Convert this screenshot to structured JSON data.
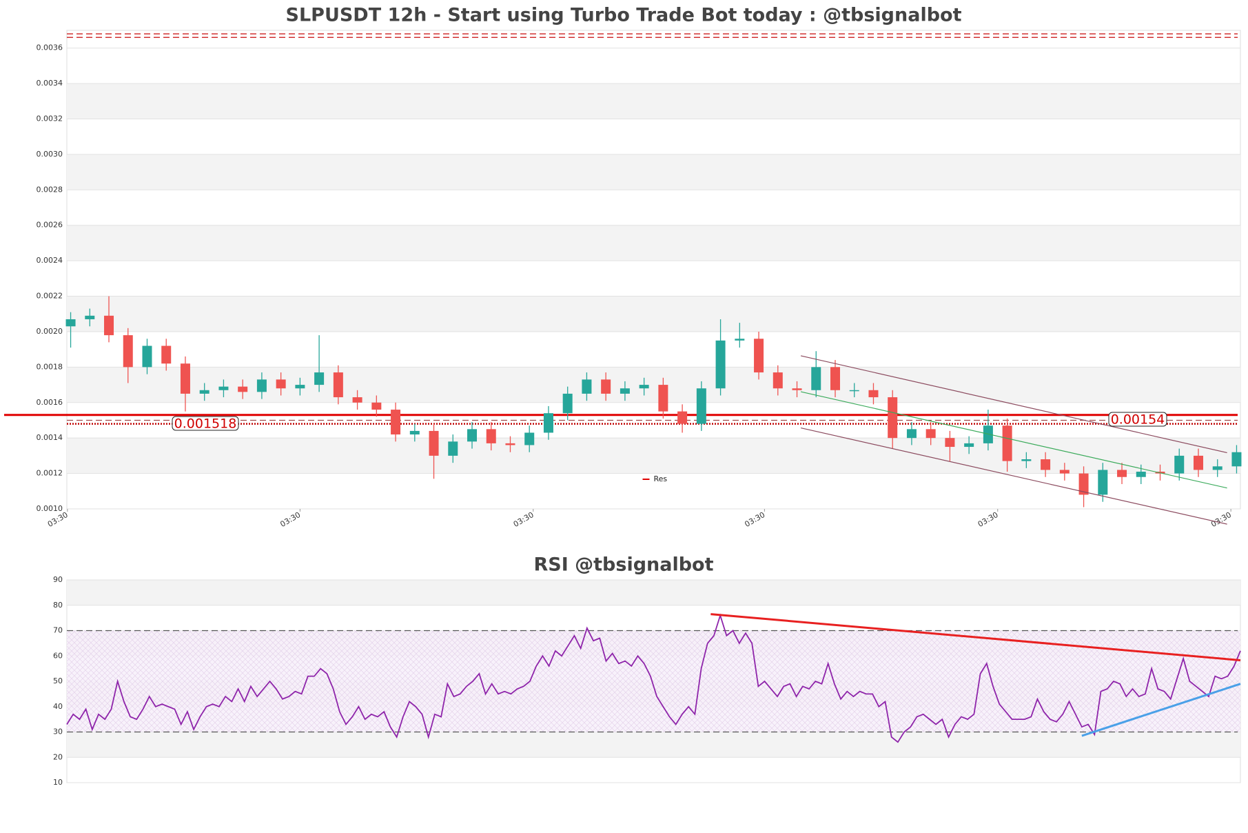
{
  "chart_data": [
    {
      "type": "candlestick",
      "title": "SLPUSDT 12h - Start using Turbo Trade Bot today : @tbsignalbot",
      "open": [
        0.00203,
        0.00207,
        0.00209,
        0.00198,
        0.0018,
        0.00192,
        0.00182,
        0.00165,
        0.00167,
        0.00169,
        0.00166,
        0.00173,
        0.00168,
        0.0017,
        0.00177,
        0.00163,
        0.0016,
        0.00156,
        0.00142,
        0.00144,
        0.0013,
        0.00138,
        0.00145,
        0.00137,
        0.00136,
        0.00143,
        0.00154,
        0.00165,
        0.00173,
        0.00165,
        0.00168,
        0.0017,
        0.00155,
        0.00148,
        0.00168,
        0.00195,
        0.00196,
        0.00177,
        0.00168,
        0.00167,
        0.0018,
        0.00167,
        0.00167,
        0.00163,
        0.0014,
        0.00145,
        0.0014,
        0.00135,
        0.00137,
        0.00147,
        0.00127,
        0.00128,
        0.00122,
        0.0012,
        0.00108,
        0.00122,
        0.00118,
        0.00121,
        0.0012,
        0.0013,
        0.00122,
        0.00124
      ],
      "high": [
        0.00211,
        0.00213,
        0.0022,
        0.00202,
        0.00196,
        0.00196,
        0.00186,
        0.00171,
        0.00173,
        0.00173,
        0.00177,
        0.00177,
        0.00174,
        0.00198,
        0.00181,
        0.00167,
        0.00164,
        0.0016,
        0.00148,
        0.00148,
        0.00142,
        0.00149,
        0.00149,
        0.00141,
        0.00147,
        0.00158,
        0.00169,
        0.00177,
        0.00177,
        0.00172,
        0.00174,
        0.00174,
        0.00159,
        0.00172,
        0.00207,
        0.00205,
        0.002,
        0.00181,
        0.00172,
        0.00189,
        0.00184,
        0.00171,
        0.00171,
        0.00167,
        0.00149,
        0.00149,
        0.00144,
        0.00141,
        0.00156,
        0.00151,
        0.00132,
        0.00132,
        0.00126,
        0.00124,
        0.00126,
        0.00126,
        0.00125,
        0.00125,
        0.00134,
        0.00134,
        0.00128,
        0.00136
      ],
      "low": [
        0.00191,
        0.00203,
        0.00194,
        0.00171,
        0.00176,
        0.00178,
        0.00155,
        0.00161,
        0.00163,
        0.00162,
        0.00162,
        0.00164,
        0.00164,
        0.00166,
        0.00159,
        0.00156,
        0.00152,
        0.00138,
        0.00138,
        0.00117,
        0.00126,
        0.00134,
        0.00133,
        0.00132,
        0.00132,
        0.00139,
        0.0015,
        0.00161,
        0.00161,
        0.00161,
        0.00164,
        0.00151,
        0.00143,
        0.00144,
        0.00164,
        0.00191,
        0.00173,
        0.00164,
        0.00163,
        0.00163,
        0.00163,
        0.00163,
        0.00159,
        0.00134,
        0.00136,
        0.00136,
        0.00127,
        0.00131,
        0.00133,
        0.00121,
        0.00123,
        0.00118,
        0.00116,
        0.00101,
        0.00104,
        0.00114,
        0.00114,
        0.00116,
        0.00116,
        0.00118,
        0.00118,
        0.0012
      ],
      "close": [
        0.00207,
        0.00209,
        0.00198,
        0.0018,
        0.00192,
        0.00182,
        0.00165,
        0.00167,
        0.00169,
        0.00166,
        0.00173,
        0.00168,
        0.0017,
        0.00177,
        0.00163,
        0.0016,
        0.00156,
        0.00142,
        0.00144,
        0.0013,
        0.00138,
        0.00145,
        0.00137,
        0.00136,
        0.00143,
        0.00154,
        0.00165,
        0.00173,
        0.00165,
        0.00168,
        0.0017,
        0.00155,
        0.00148,
        0.00168,
        0.00195,
        0.00196,
        0.00177,
        0.00168,
        0.00167,
        0.0018,
        0.00167,
        0.00167,
        0.00163,
        0.0014,
        0.00145,
        0.0014,
        0.00135,
        0.00137,
        0.00147,
        0.00127,
        0.00128,
        0.00122,
        0.0012,
        0.00108,
        0.00122,
        0.00118,
        0.00121,
        0.0012,
        0.0013,
        0.00122,
        0.00124,
        0.00132
      ],
      "up_color": "#26a69a",
      "down_color": "#ef5350",
      "xlim": [
        -0.2,
        61.2
      ],
      "xticks": [
        {
          "value": -0.17,
          "label": "03:30"
        },
        {
          "value": 12.0,
          "label": "03:30"
        },
        {
          "value": 24.2,
          "label": "03:30"
        },
        {
          "value": 36.3,
          "label": "03:30"
        },
        {
          "value": 48.5,
          "label": "03:30"
        },
        {
          "value": 60.7,
          "label": "03:30"
        }
      ],
      "ylim": [
        0.001,
        0.0037
      ],
      "yticks": [
        {
          "value": 0.001,
          "label": "0.0010"
        },
        0.0012,
        0.0014,
        0.0016,
        0.0018,
        {
          "value": 0.002,
          "label": "0.0020"
        },
        0.0022,
        0.0024,
        0.0026,
        0.0028,
        {
          "value": 0.003,
          "label": "0.0030"
        },
        0.0032,
        0.0034,
        0.0036
      ],
      "grid": "bands",
      "hlines": [
        {
          "name": "Res",
          "value": 0.00153,
          "color": "#e00000",
          "style": "solid",
          "width": 3
        },
        {
          "value": 0.0015,
          "color": "#a04848",
          "style": "dashed",
          "width": 1.2
        },
        {
          "value": 0.00148,
          "color": "#c00000",
          "style": "dotted",
          "width": 2.5
        },
        {
          "value": 0.00368,
          "color": "#d03030",
          "style": "dashed",
          "width": 1.5
        },
        {
          "value": 0.00366,
          "color": "#d03030",
          "style": "dashed",
          "width": 1.5
        }
      ],
      "price_labels": [
        "0.001518",
        "0.00154"
      ],
      "trend_lines": [
        {
          "color": "#8b4a5e",
          "x": [
            38.2,
            60.5
          ],
          "y": [
            0.001864,
            0.001317
          ]
        },
        {
          "color": "#8b4a5e",
          "x": [
            38.2,
            60.5
          ],
          "y": [
            0.001457,
            0.000914
          ]
        },
        {
          "color": "#3aaa5a",
          "x": [
            38.2,
            60.5
          ],
          "y": [
            0.001661,
            0.001118
          ]
        }
      ],
      "legend": "lower center"
    },
    {
      "type": "line",
      "title": "RSI @tbsignalbot",
      "series": [
        {
          "color": "#8e24aa",
          "values": [
            33,
            37,
            35,
            39,
            31,
            37,
            35,
            39,
            50,
            42,
            36,
            35,
            39,
            44,
            40,
            41,
            40,
            39,
            33,
            38,
            31,
            36,
            40,
            41,
            40,
            44,
            42,
            47,
            42,
            48,
            44,
            47,
            50,
            47,
            43,
            44,
            46,
            45,
            52,
            52,
            55,
            53,
            47,
            38,
            33,
            36,
            40,
            35,
            37,
            36,
            38,
            32,
            28,
            36,
            42,
            40,
            37,
            28,
            37,
            36,
            49,
            44,
            45,
            48,
            50,
            53,
            45,
            49,
            45,
            46,
            45,
            47,
            48,
            50,
            56,
            60,
            56,
            62,
            60,
            64,
            68,
            63,
            71,
            66,
            67,
            58,
            61,
            57,
            58,
            56,
            60,
            57,
            52,
            44,
            40,
            36,
            33,
            37,
            40,
            37,
            55,
            65,
            68,
            76,
            68,
            70,
            65,
            69,
            65,
            48,
            50,
            47,
            44,
            48,
            49,
            44,
            48,
            47,
            50,
            49,
            57,
            49,
            43,
            46,
            44,
            46,
            45,
            45,
            40,
            42,
            28,
            26,
            30,
            32,
            36,
            37,
            35,
            33,
            35,
            28,
            33,
            36,
            35,
            37,
            53,
            57,
            48,
            41,
            38,
            35,
            35,
            35,
            36,
            43,
            38,
            35,
            34,
            37,
            42,
            37,
            32,
            33,
            29,
            46,
            47,
            50,
            49,
            44,
            47,
            44,
            45,
            55,
            47,
            46,
            43,
            51,
            59,
            50,
            48,
            46,
            44,
            52,
            51,
            52,
            56,
            62
          ]
        }
      ],
      "xlim": [
        0,
        185
      ],
      "ylim": [
        10,
        90
      ],
      "yticks": [
        10,
        20,
        30,
        40,
        50,
        60,
        70,
        80,
        90
      ],
      "grid": "bands",
      "hlines": [
        {
          "value": 30,
          "color": "#555555",
          "style": "dashed",
          "width": 1.2
        },
        {
          "value": 70,
          "color": "#555555",
          "style": "dashed",
          "width": 1.2
        }
      ],
      "fill_between": [
        30,
        70
      ],
      "trend_lines": [
        {
          "color": "#e82020",
          "x": [
            101.5,
            185
          ],
          "y": [
            76.5,
            58.3
          ]
        },
        {
          "color": "#4aa0e8",
          "x": [
            160,
            185
          ],
          "y": [
            28.5,
            49
          ]
        }
      ]
    }
  ]
}
